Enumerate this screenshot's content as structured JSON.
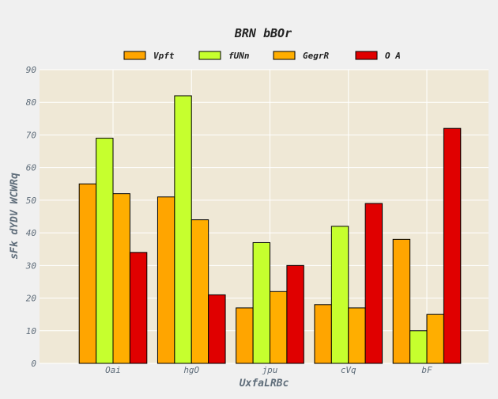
{
  "chart_data": {
    "type": "bar",
    "title": "BRN bBOr",
    "xlabel": "UxfaLRBc",
    "ylabel": "sFk dYDV WCWRq",
    "categories": [
      "Oai",
      "hgO",
      "jpu",
      "cVq",
      "bF"
    ],
    "series": [
      {
        "name": "Vpft",
        "color": "#ffa500",
        "values": [
          55,
          51,
          17,
          18,
          38
        ]
      },
      {
        "name": "fUNn",
        "color": "#c6ff2e",
        "values": [
          69,
          82,
          37,
          42,
          10
        ]
      },
      {
        "name": "GegrR",
        "color": "#ffae00",
        "values": [
          52,
          44,
          22,
          17,
          15
        ]
      },
      {
        "name": "O A",
        "color": "#e00000",
        "values": [
          34,
          21,
          30,
          49,
          72
        ]
      }
    ],
    "ylim": [
      0,
      90
    ],
    "yticks": [
      0,
      10,
      20,
      30,
      40,
      50,
      60,
      70,
      80,
      90
    ],
    "grid": true,
    "legend_position": "top-center",
    "plot_background": "#efe8d6",
    "grid_color": "#ffffff"
  }
}
